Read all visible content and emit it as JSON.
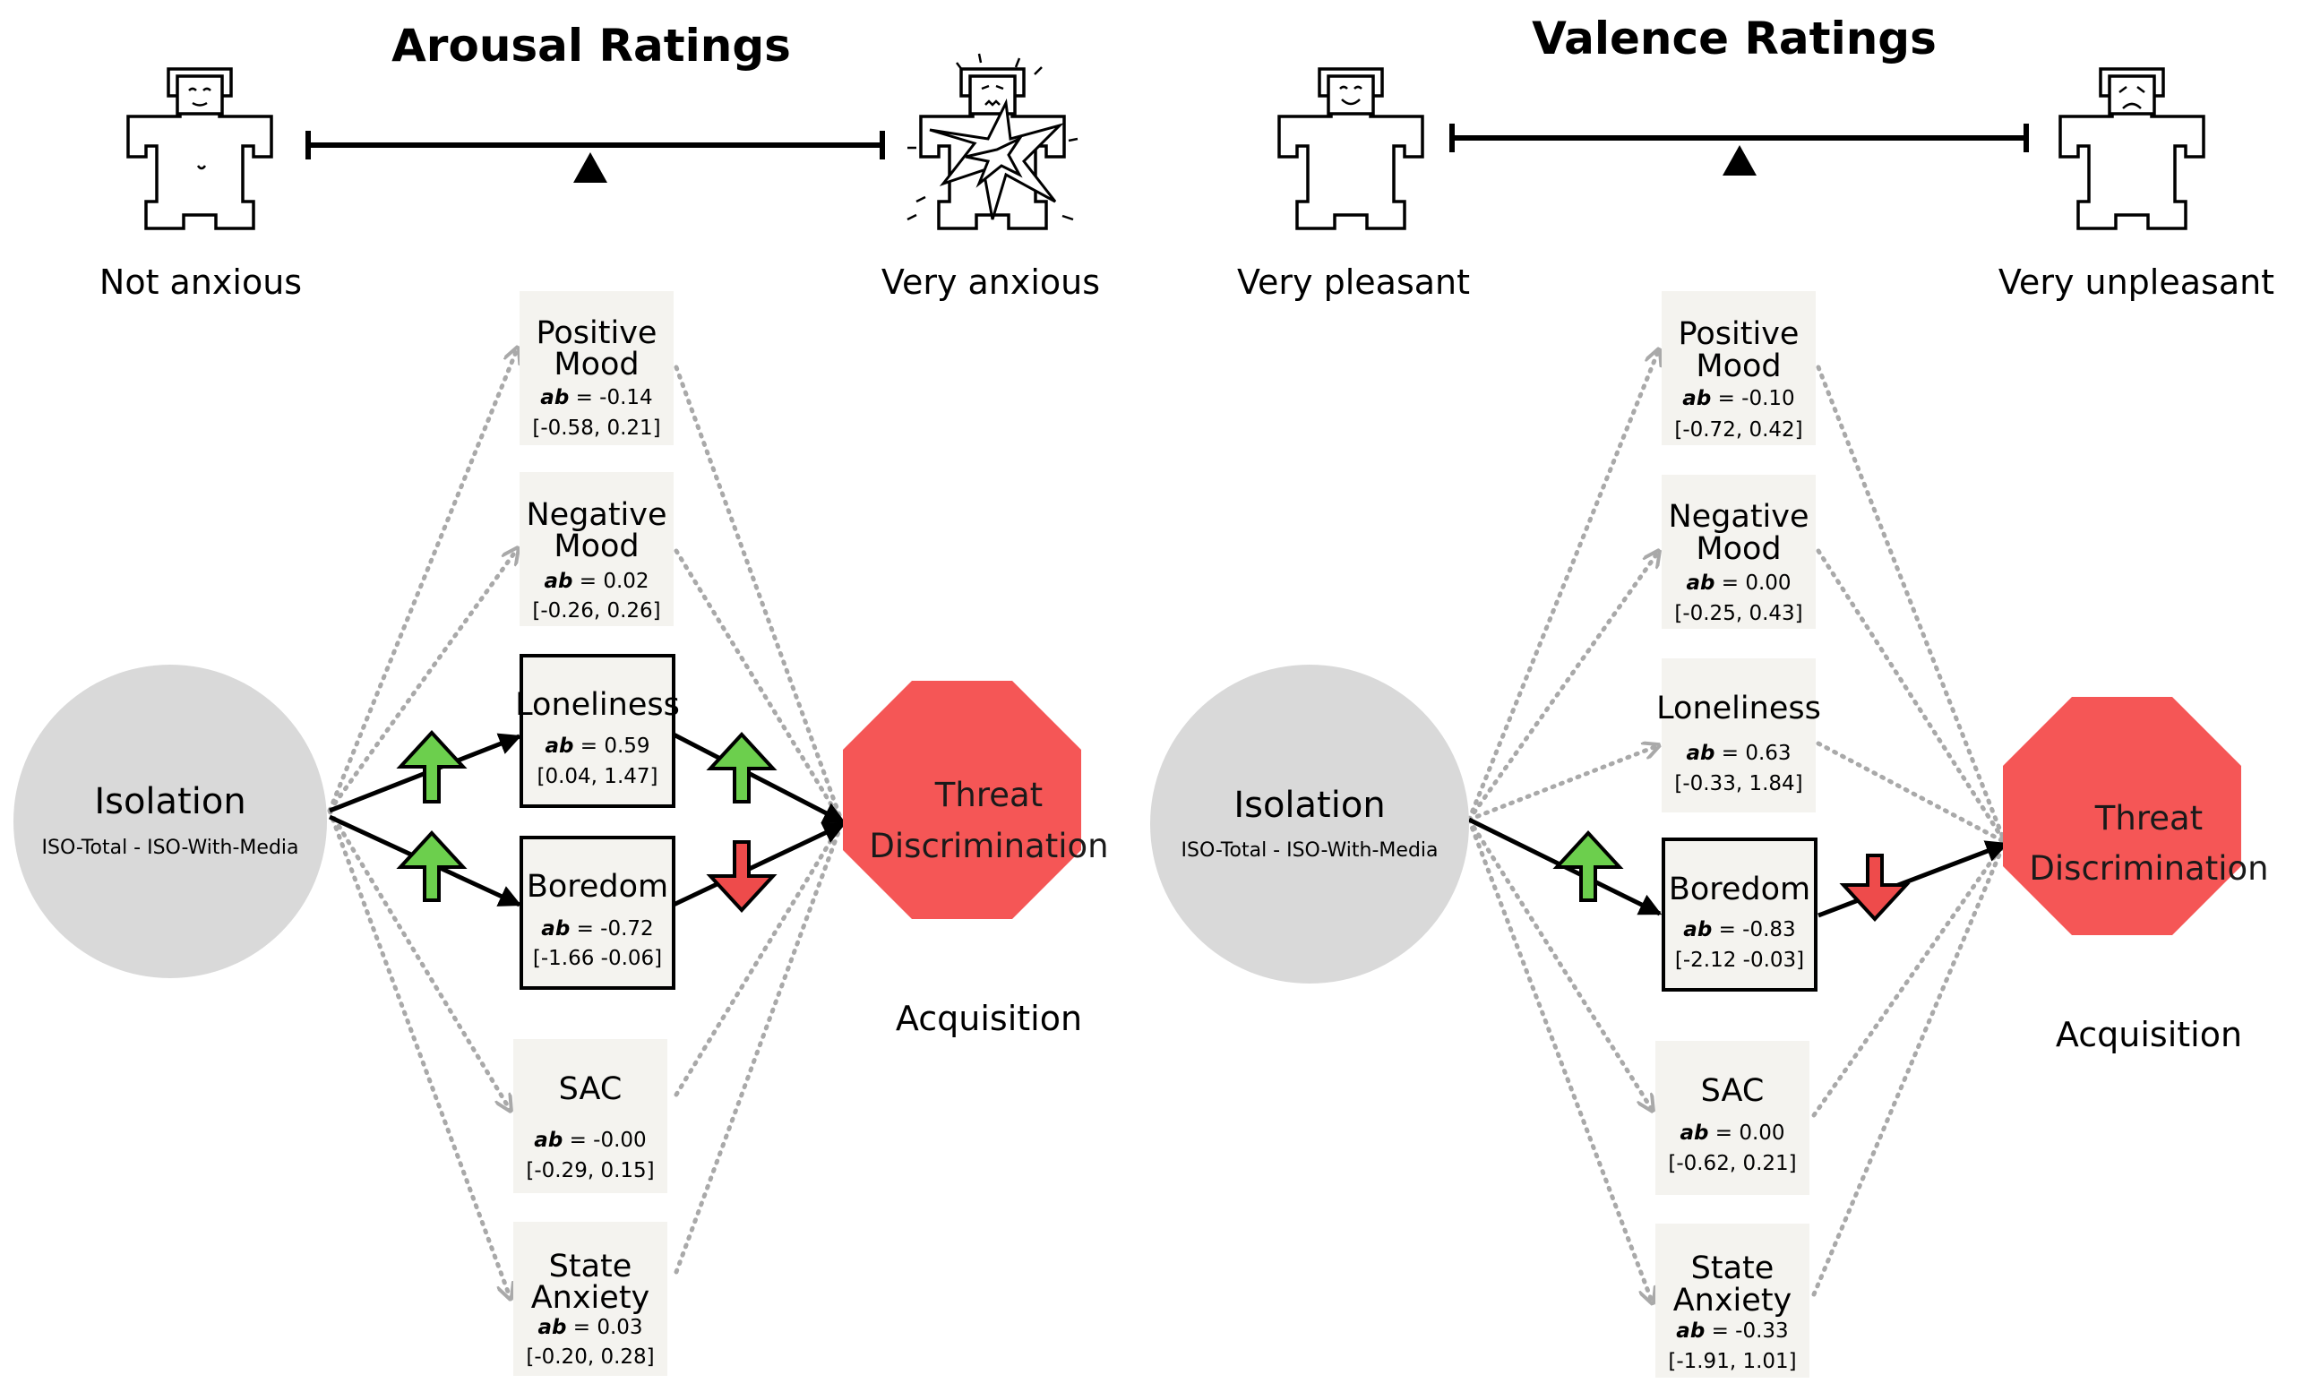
{
  "colors": {
    "isolation_fill": "#d9d9d9",
    "threat_fill": "#f55656",
    "mediator_box_fill": "#f4f3ef",
    "up_arrow": "#6ccf4d",
    "down_arrow": "#ee4b4b",
    "dotted_path": "#a9a9a9"
  },
  "arousal": {
    "title": "Arousal Ratings",
    "scale_left": "Not anxious",
    "scale_right": "Very anxious",
    "left_icon": "calm-figure-icon",
    "right_icon": "anxious-figure-icon",
    "isolation": {
      "name": "Isolation",
      "sub": "ISO-Total - ISO-With-Media"
    },
    "threat": {
      "line1": "Threat",
      "line2": "Discrimination"
    },
    "outcome_label": "Acquisition",
    "mediators": {
      "positive_mood": {
        "line1": "Positive",
        "line2": "Mood",
        "ab": "ab",
        "ab_value": "= -0.14",
        "ci": "[-0.58, 0.21]"
      },
      "negative_mood": {
        "line1": "Negative",
        "line2": "Mood",
        "ab": "ab",
        "ab_value": "= 0.02",
        "ci": "[-0.26, 0.26]"
      },
      "loneliness": {
        "line1": "Loneliness",
        "ab": "ab",
        "ab_value": "= 0.59",
        "ci": "[0.04, 1.47]"
      },
      "boredom": {
        "line1": "Boredom",
        "ab": "ab",
        "ab_value": "= -0.72",
        "ci": "[-1.66 -0.06]"
      },
      "sac": {
        "line1": "SAC",
        "ab": "ab",
        "ab_value": "= -0.00",
        "ci": "[-0.29, 0.15]"
      },
      "state_anxiety": {
        "line1": "State",
        "line2": "Anxiety",
        "ab": "ab",
        "ab_value": "= 0.03",
        "ci": "[-0.20, 0.28]"
      }
    }
  },
  "valence": {
    "title": "Valence Ratings",
    "scale_left": "Very pleasant",
    "scale_right": "Very unpleasant",
    "left_icon": "happy-figure-icon",
    "right_icon": "sad-figure-icon",
    "isolation": {
      "name": "Isolation",
      "sub": "ISO-Total - ISO-With-Media"
    },
    "threat": {
      "line1": "Threat",
      "line2": "Discrimination"
    },
    "outcome_label": "Acquisition",
    "mediators": {
      "positive_mood": {
        "line1": "Positive",
        "line2": "Mood",
        "ab": "ab",
        "ab_value": "= -0.10",
        "ci": "[-0.72, 0.42]"
      },
      "negative_mood": {
        "line1": "Negative",
        "line2": "Mood",
        "ab": "ab",
        "ab_value": "= 0.00",
        "ci": "[-0.25, 0.43]"
      },
      "loneliness": {
        "line1": "Loneliness",
        "ab": "ab",
        "ab_value": "= 0.63",
        "ci": "[-0.33, 1.84]"
      },
      "boredom": {
        "line1": "Boredom",
        "ab": "ab",
        "ab_value": "= -0.83",
        "ci": "[-2.12 -0.03]"
      },
      "sac": {
        "line1": "SAC",
        "ab": "ab",
        "ab_value": "= 0.00",
        "ci": "[-0.62, 0.21]"
      },
      "state_anxiety": {
        "line1": "State",
        "line2": "Anxiety",
        "ab": "ab",
        "ab_value": "= -0.33",
        "ci": "[-1.91, 1.01]"
      }
    }
  }
}
